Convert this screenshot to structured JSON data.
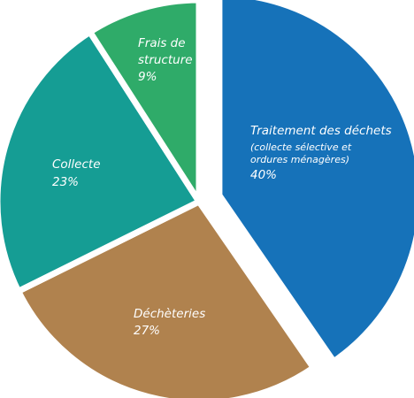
{
  "chart_data": {
    "type": "pie",
    "legend": "none",
    "slices": [
      {
        "label": "Traitement des déchets",
        "sublabel": "(collecte sélective et",
        "sublabel2": "ordures ménagères)",
        "value": 40,
        "value_label": "40%",
        "color": "#1672b9"
      },
      {
        "label": "Déchèteries",
        "value": 27,
        "value_label": "27%",
        "color": "#b0824e"
      },
      {
        "label": "Collecte",
        "value": 23,
        "value_label": "23%",
        "color": "#159d94"
      },
      {
        "label": "Frais de",
        "label2": "structure",
        "value": 9,
        "value_label": "9%",
        "color": "#2fab69"
      }
    ]
  }
}
